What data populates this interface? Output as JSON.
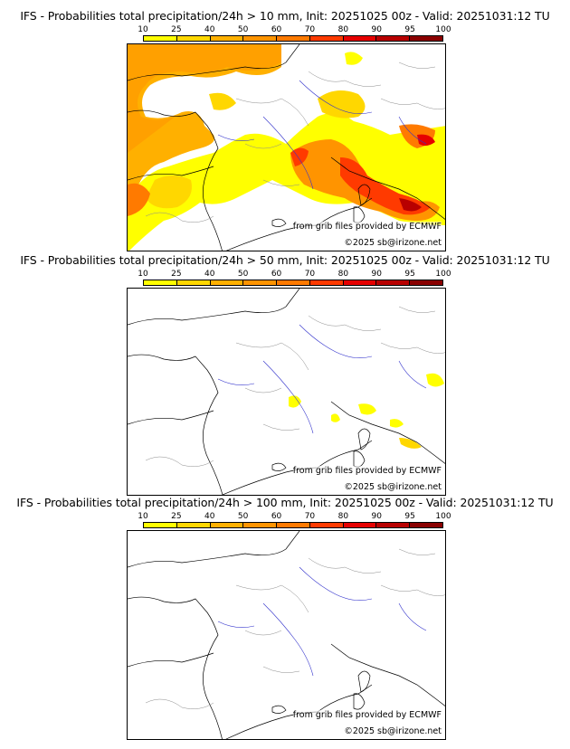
{
  "panels": [
    {
      "title": "IFS - Probabilities total precipitation/24h > 10 mm, Init: 20251025 00z - Valid: 20251031:12 TU",
      "credit_source": "from grib files provided by ECMWF",
      "credit_copyright": "©2025 sb@irizone.net"
    },
    {
      "title": "IFS - Probabilities total precipitation/24h > 50 mm, Init: 20251025 00z - Valid: 20251031:12 TU",
      "credit_source": "from grib files provided by ECMWF",
      "credit_copyright": "©2025 sb@irizone.net"
    },
    {
      "title": "IFS - Probabilities total precipitation/24h > 100 mm, Init: 20251025 00z - Valid: 20251031:12 TU",
      "credit_source": "from grib files provided by ECMWF",
      "credit_copyright": "©2025 sb@irizone.net"
    }
  ],
  "colorbar": {
    "labels": [
      "10",
      "25",
      "40",
      "50",
      "60",
      "70",
      "80",
      "90",
      "95",
      "100"
    ],
    "colors": [
      "#ffff00",
      "#ffd700",
      "#ffb000",
      "#ff9400",
      "#ff7a00",
      "#ff3a00",
      "#e60000",
      "#b80000",
      "#8a0000",
      "#600000"
    ]
  }
}
